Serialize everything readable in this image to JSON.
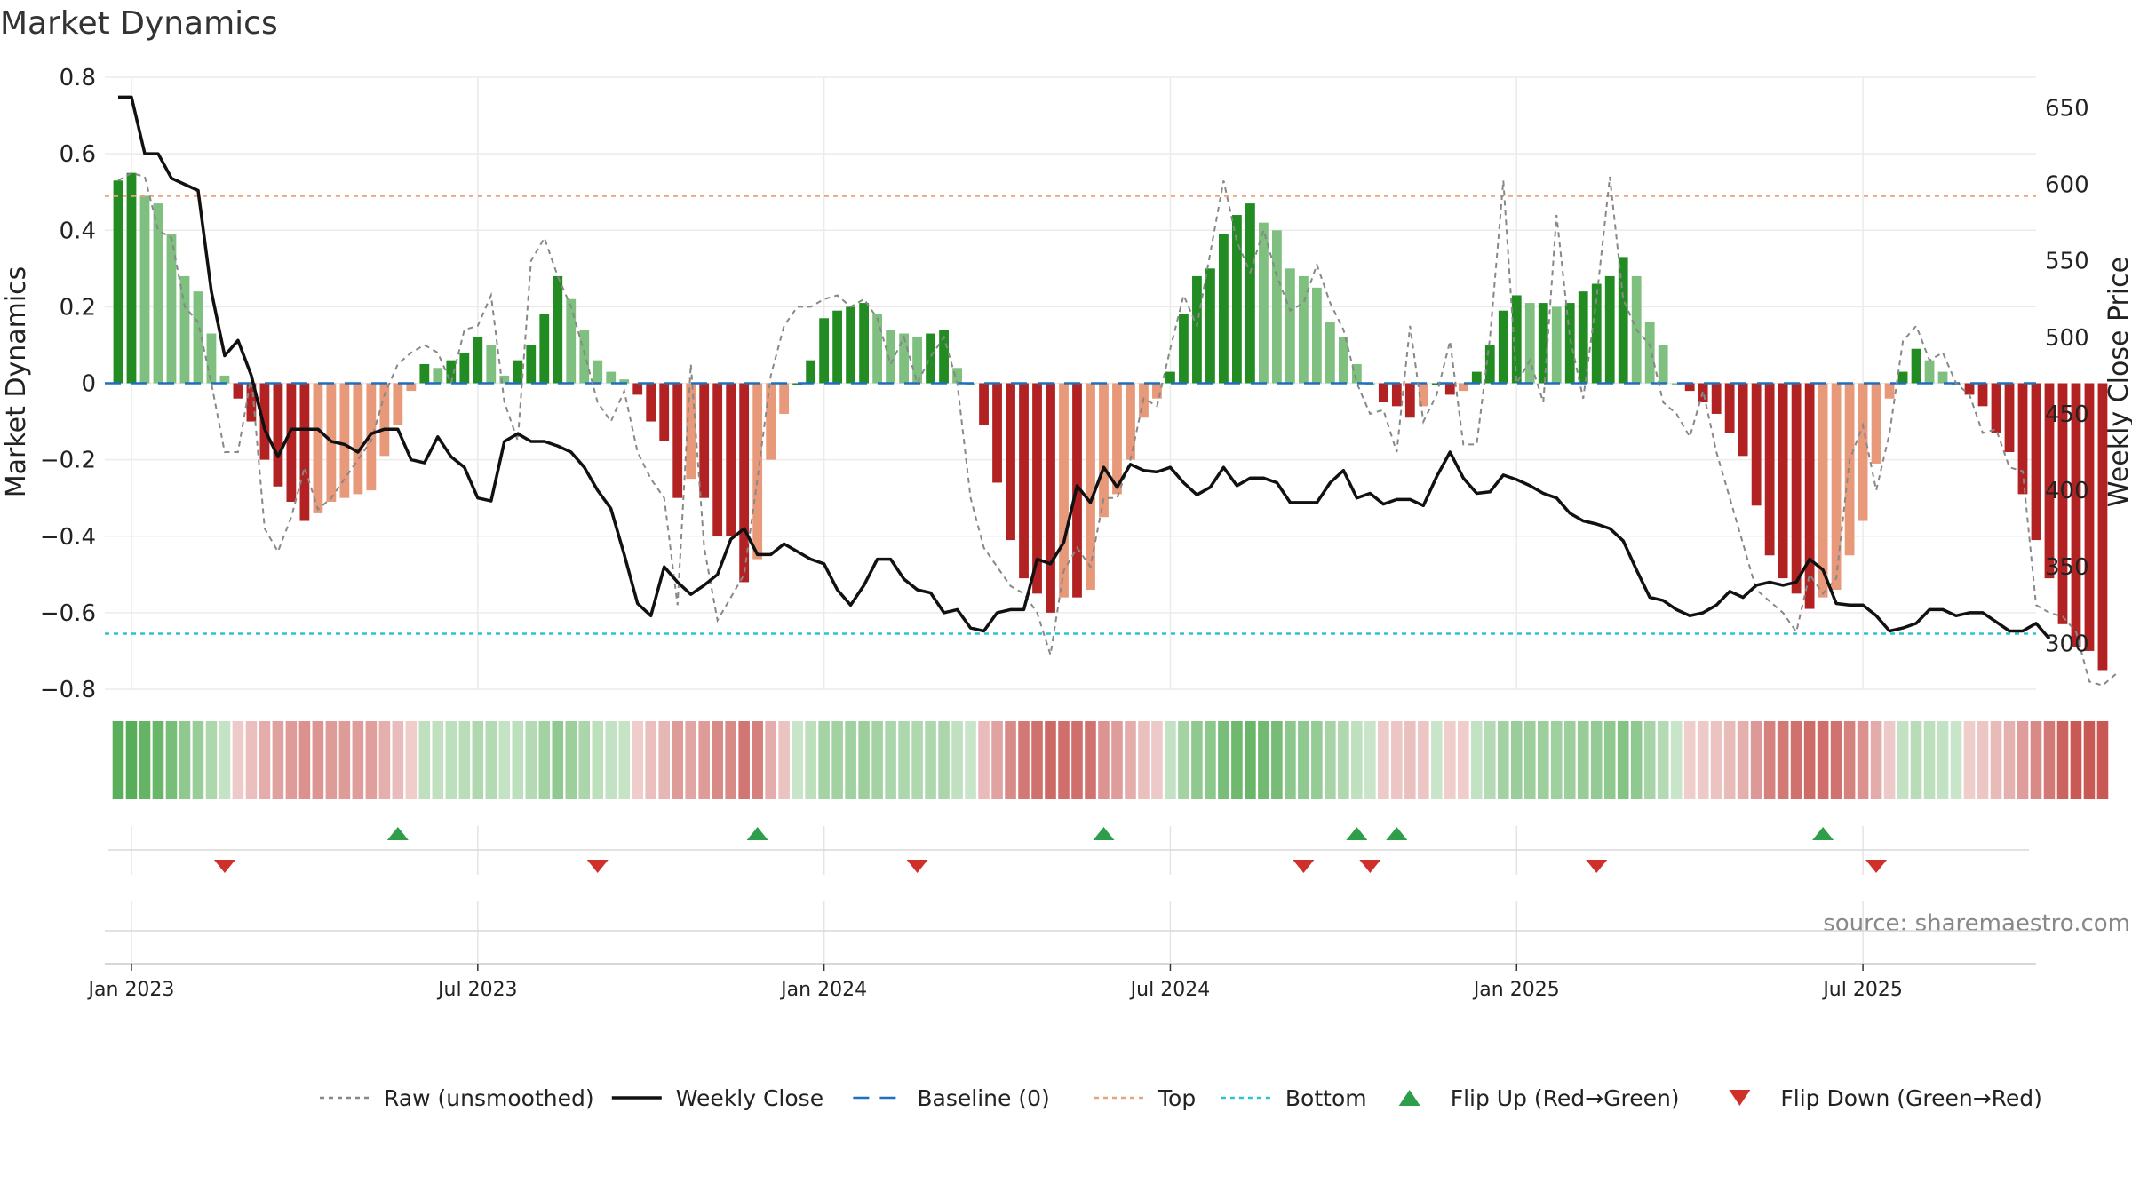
{
  "chart_data": {
    "type": "bar",
    "title": "Market Dynamics",
    "ylabel_left": "Market Dynamics",
    "ylabel_right": "Weekly Close Price",
    "source": "source: sharemaestro.com",
    "left_axis": {
      "ylim": [
        -0.8,
        0.8
      ],
      "ticks": [
        -0.8,
        -0.6,
        -0.4,
        -0.2,
        0,
        0.2,
        0.4,
        0.6,
        0.8
      ],
      "tick_labels": [
        "−0.8",
        "−0.6",
        "−0.4",
        "−0.2",
        "0",
        "0.2",
        "0.4",
        "0.6",
        "0.8"
      ]
    },
    "right_axis": {
      "ylim": [
        270,
        670
      ],
      "ticks": [
        300,
        350,
        400,
        450,
        500,
        550,
        600,
        650
      ],
      "tick_labels": [
        "300",
        "350",
        "400",
        "450",
        "500",
        "550",
        "600",
        "650"
      ]
    },
    "x_axis": {
      "range_weeks": [
        -1,
        144
      ],
      "ticks": [
        1,
        27,
        53,
        79,
        105,
        131
      ],
      "tick_labels": [
        "Jan 2023",
        "Jul 2023",
        "Jan 2024",
        "Jul 2024",
        "Jan 2025",
        "Jul 2025"
      ]
    },
    "top_level": 0.49,
    "bottom_level": -0.655,
    "baseline": 0,
    "series": [
      {
        "name": "Market Dynamics (smoothed)",
        "kind": "bar",
        "values": [
          0.53,
          0.55,
          0.49,
          0.47,
          0.39,
          0.28,
          0.24,
          0.13,
          0.02,
          -0.04,
          -0.1,
          -0.2,
          -0.27,
          -0.31,
          -0.36,
          -0.34,
          -0.31,
          -0.3,
          -0.29,
          -0.28,
          -0.19,
          -0.11,
          -0.02,
          0.05,
          0.04,
          0.06,
          0.08,
          0.12,
          0.1,
          0.02,
          0.06,
          0.1,
          0.18,
          0.28,
          0.22,
          0.14,
          0.06,
          0.03,
          0.01,
          -0.03,
          -0.1,
          -0.15,
          -0.3,
          -0.25,
          -0.3,
          -0.4,
          -0.4,
          -0.52,
          -0.46,
          -0.2,
          -0.08,
          0.0,
          0.06,
          0.17,
          0.19,
          0.2,
          0.21,
          0.18,
          0.14,
          0.13,
          0.12,
          0.13,
          0.14,
          0.04,
          0.0,
          -0.11,
          -0.26,
          -0.41,
          -0.51,
          -0.55,
          -0.6,
          -0.56,
          -0.56,
          -0.54,
          -0.35,
          -0.29,
          -0.2,
          -0.09,
          -0.04,
          0.03,
          0.18,
          0.28,
          0.3,
          0.39,
          0.44,
          0.47,
          0.42,
          0.4,
          0.3,
          0.28,
          0.25,
          0.16,
          0.12,
          0.05,
          0.0,
          -0.05,
          -0.06,
          -0.09,
          -0.06,
          0.0,
          -0.03,
          -0.02,
          0.03,
          0.1,
          0.19,
          0.23,
          0.21,
          0.21,
          0.2,
          0.21,
          0.24,
          0.26,
          0.28,
          0.33,
          0.28,
          0.16,
          0.1,
          0.0,
          -0.02,
          -0.05,
          -0.08,
          -0.13,
          -0.19,
          -0.32,
          -0.45,
          -0.51,
          -0.55,
          -0.59,
          -0.56,
          -0.54,
          -0.45,
          -0.36,
          -0.21,
          -0.04,
          0.03,
          0.09,
          0.06,
          0.03,
          0.0,
          -0.03,
          -0.06,
          -0.13,
          -0.18,
          -0.29,
          -0.41,
          -0.51,
          -0.63,
          -0.69,
          -0.7,
          -0.75
        ]
      },
      {
        "name": "Raw (unsmoothed)",
        "kind": "line",
        "values": [
          0.53,
          0.55,
          0.54,
          0.4,
          0.38,
          0.2,
          0.16,
          0.0,
          -0.18,
          -0.18,
          0.02,
          -0.38,
          -0.44,
          -0.35,
          -0.22,
          -0.33,
          -0.3,
          -0.25,
          -0.2,
          -0.15,
          -0.03,
          0.05,
          0.08,
          0.1,
          0.08,
          0.0,
          0.14,
          0.15,
          0.23,
          -0.05,
          -0.15,
          0.32,
          0.38,
          0.28,
          0.2,
          0.08,
          -0.05,
          -0.1,
          -0.02,
          -0.18,
          -0.25,
          -0.3,
          -0.58,
          0.05,
          -0.43,
          -0.62,
          -0.56,
          -0.5,
          -0.25,
          0.02,
          0.15,
          0.2,
          0.2,
          0.22,
          0.23,
          0.2,
          0.22,
          0.17,
          0.05,
          0.12,
          0.0,
          0.07,
          0.12,
          0.0,
          -0.3,
          -0.43,
          -0.48,
          -0.53,
          -0.55,
          -0.6,
          -0.71,
          -0.49,
          -0.43,
          -0.48,
          -0.3,
          -0.3,
          -0.2,
          -0.04,
          -0.06,
          0.09,
          0.23,
          0.15,
          0.34,
          0.53,
          0.37,
          0.29,
          0.4,
          0.28,
          0.19,
          0.21,
          0.31,
          0.21,
          0.14,
          0.0,
          -0.08,
          -0.07,
          -0.18,
          0.15,
          -0.1,
          -0.03,
          0.11,
          -0.16,
          -0.16,
          0.12,
          0.53,
          0.0,
          0.06,
          -0.05,
          0.44,
          0.12,
          -0.04,
          0.22,
          0.54,
          0.22,
          0.14,
          0.1,
          -0.05,
          -0.08,
          -0.14,
          -0.02,
          -0.18,
          -0.3,
          -0.42,
          -0.54,
          -0.57,
          -0.6,
          -0.65,
          -0.5,
          -0.55,
          -0.51,
          -0.2,
          -0.11,
          -0.28,
          -0.13,
          0.11,
          0.15,
          0.06,
          0.08,
          0.0,
          -0.03,
          -0.13,
          -0.12,
          -0.22,
          -0.23,
          -0.58,
          -0.6,
          -0.61,
          -0.65,
          -0.78,
          -0.79,
          -0.76
        ]
      },
      {
        "name": "Weekly Close",
        "kind": "line",
        "axis": "right",
        "values": [
          657,
          657,
          620,
          620,
          604,
          600,
          596,
          530,
          488,
          498,
          475,
          440,
          422,
          440,
          440,
          440,
          432,
          430,
          425,
          437,
          440,
          440,
          420,
          418,
          435,
          422,
          415,
          395,
          393,
          432,
          437,
          432,
          432,
          429,
          425,
          415,
          400,
          388,
          358,
          326,
          318,
          350,
          340,
          332,
          338,
          345,
          368,
          375,
          358,
          358,
          365,
          360,
          355,
          352,
          335,
          325,
          338,
          355,
          355,
          342,
          335,
          333,
          320,
          322,
          310,
          308,
          320,
          322,
          322,
          355,
          352,
          366,
          403,
          392,
          415,
          402,
          417,
          413,
          412,
          415,
          405,
          397,
          402,
          415,
          403,
          408,
          408,
          405,
          392,
          392,
          392,
          405,
          413,
          395,
          398,
          391,
          394,
          394,
          390,
          409,
          425,
          408,
          398,
          399,
          410,
          407,
          403,
          398,
          395,
          385,
          380,
          378,
          375,
          367,
          348,
          330,
          328,
          322,
          318,
          320,
          325,
          334,
          330,
          338,
          340,
          338,
          340,
          355,
          348,
          326,
          325,
          325,
          318,
          308,
          310,
          313,
          322,
          322,
          318,
          320,
          320,
          314,
          308,
          308,
          313,
          303
        ]
      }
    ],
    "flip_up_weeks": [
      21,
      48,
      74,
      93,
      96,
      128
    ],
    "flip_down_weeks": [
      8,
      36,
      60,
      89,
      94,
      111,
      132
    ],
    "legend": {
      "position": "bottom",
      "entries": [
        {
          "label": "Raw (unsmoothed)",
          "style": "dotted",
          "color": "#888888"
        },
        {
          "label": "Weekly Close",
          "style": "solid",
          "color": "#111111"
        },
        {
          "label": "Baseline (0)",
          "style": "dashed",
          "color": "#1f6fbf"
        },
        {
          "label": "Top",
          "style": "dotted",
          "color": "#e8a27c"
        },
        {
          "label": "Bottom",
          "style": "dotted",
          "color": "#2ac3d0"
        },
        {
          "label": "Flip Up (Red→Green)",
          "style": "triangle-up",
          "color": "#2e9e4a"
        },
        {
          "label": "Flip Down (Green→Red)",
          "style": "triangle-down",
          "color": "#d0302a"
        }
      ]
    },
    "colors": {
      "strong_green": "#228b22",
      "light_green": "#7fbf7f",
      "strong_red": "#b22222",
      "light_red": "#e8997a",
      "grid": "#ebebeb",
      "axis_text": "#222222"
    }
  }
}
